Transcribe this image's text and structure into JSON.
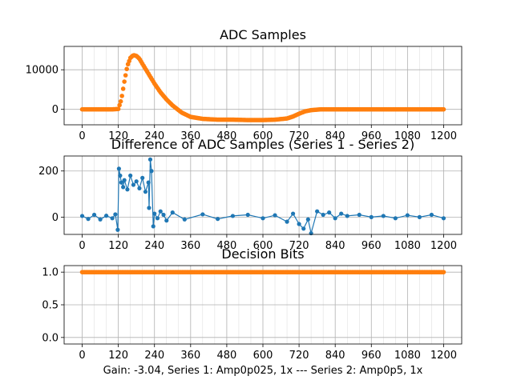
{
  "figure": {
    "xlabel": "Gain: -3.04, Series 1: Amp0p025, 1x --- Series 2: Amp0p5, 1x"
  },
  "colors": {
    "series1": "#1f77b4",
    "series2": "#ff7f0e"
  },
  "chart_data": [
    {
      "type": "scatter",
      "title": "ADC Samples",
      "xlim": [
        -60,
        1260
      ],
      "ylim": [
        -3900,
        15900
      ],
      "xticks": [
        0,
        120,
        240,
        360,
        480,
        600,
        720,
        840,
        960,
        1080,
        1200
      ],
      "yticks": [
        0,
        10000
      ],
      "grid": true,
      "series": [
        {
          "color": "#ff7f0e",
          "x": [
            0,
            100,
            120,
            130,
            140,
            150,
            160,
            170,
            180,
            190,
            200,
            220,
            240,
            260,
            280,
            300,
            330,
            360,
            400,
            450,
            500,
            550,
            600,
            640,
            680,
            700,
            720,
            740,
            760,
            790,
            820,
            840,
            900,
            1000,
            1100,
            1200
          ],
          "y": [
            0,
            0,
            100,
            2500,
            7000,
            11000,
            13000,
            13700,
            13500,
            12800,
            11500,
            9000,
            6500,
            4300,
            2500,
            1000,
            -800,
            -1900,
            -2400,
            -2600,
            -2600,
            -2700,
            -2700,
            -2600,
            -2300,
            -1800,
            -1100,
            -500,
            -200,
            0,
            0,
            0,
            0,
            0,
            0,
            0
          ]
        }
      ]
    },
    {
      "type": "line",
      "title": "Difference of ADC Samples (Series 1 - Series 2)",
      "xlim": [
        -60,
        1260
      ],
      "ylim": [
        -75,
        265
      ],
      "xticks": [
        0,
        120,
        240,
        360,
        480,
        600,
        720,
        840,
        960,
        1080,
        1200
      ],
      "yticks": [
        0,
        200
      ],
      "grid": true,
      "series": [
        {
          "color": "#1f77b4",
          "x": [
            0,
            20,
            40,
            60,
            80,
            100,
            110,
            118,
            122,
            126,
            130,
            136,
            140,
            150,
            160,
            170,
            180,
            190,
            200,
            210,
            220,
            222,
            226,
            230,
            236,
            240,
            250,
            260,
            270,
            280,
            300,
            340,
            400,
            450,
            500,
            550,
            600,
            640,
            680,
            700,
            720,
            735,
            750,
            760,
            780,
            800,
            820,
            840,
            860,
            880,
            920,
            960,
            1000,
            1040,
            1080,
            1120,
            1160,
            1200
          ],
          "y": [
            5,
            -8,
            10,
            -10,
            6,
            -5,
            12,
            -55,
            210,
            180,
            150,
            130,
            160,
            120,
            180,
            140,
            155,
            125,
            170,
            110,
            150,
            40,
            250,
            200,
            -40,
            15,
            -5,
            25,
            10,
            -15,
            20,
            -10,
            12,
            -8,
            5,
            10,
            -5,
            8,
            -20,
            15,
            -30,
            -50,
            -10,
            -70,
            25,
            10,
            20,
            -5,
            15,
            5,
            10,
            0,
            5,
            -5,
            8,
            0,
            10,
            -5
          ]
        }
      ]
    },
    {
      "type": "scatter",
      "title": "Decision Bits",
      "xlim": [
        -60,
        1260
      ],
      "ylim": [
        -0.1,
        1.1
      ],
      "xticks": [
        0,
        120,
        240,
        360,
        480,
        600,
        720,
        840,
        960,
        1080,
        1200
      ],
      "yticks": [
        0.0,
        0.5,
        1.0
      ],
      "ytick_labels": [
        "0.0",
        "0.5",
        "1.0"
      ],
      "grid": true,
      "series": [
        {
          "color": "#ff7f0e",
          "x": [
            0,
            1200
          ],
          "y": [
            1,
            1
          ]
        }
      ]
    }
  ]
}
